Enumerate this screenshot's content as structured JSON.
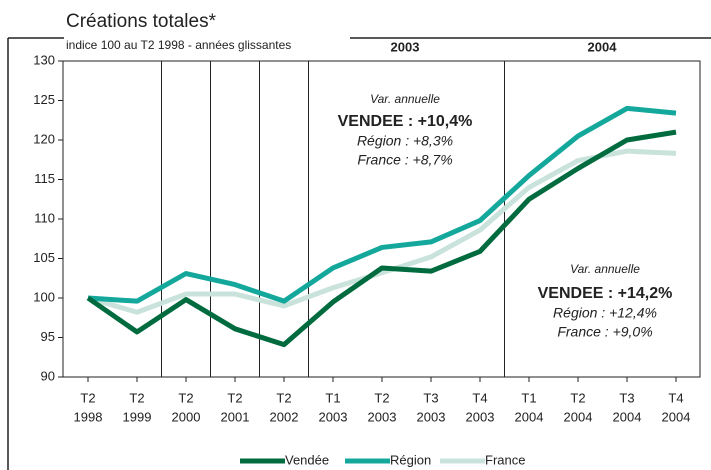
{
  "chart_data": {
    "type": "line",
    "title": "Créations totales*",
    "subtitle": "indice 100 au T2 1998 - années glissantes",
    "categories": [
      [
        "T2",
        "1998"
      ],
      [
        "T2",
        "1999"
      ],
      [
        "T2",
        "2000"
      ],
      [
        "T2",
        "2001"
      ],
      [
        "T2",
        "2002"
      ],
      [
        "T1",
        "2003"
      ],
      [
        "T2",
        "2003"
      ],
      [
        "T3",
        "2003"
      ],
      [
        "T4",
        "2003"
      ],
      [
        "T1",
        "2004"
      ],
      [
        "T2",
        "2004"
      ],
      [
        "T3",
        "2004"
      ],
      [
        "T4",
        "2004"
      ]
    ],
    "series": [
      {
        "name": "Vendée",
        "color": "#006b3f",
        "values": [
          100,
          95.7,
          99.8,
          96.1,
          94.1,
          99.5,
          103.8,
          103.4,
          105.9,
          112.5,
          116.4,
          120,
          121
        ]
      },
      {
        "name": "Région",
        "color": "#14a89c",
        "values": [
          100,
          99.6,
          103.1,
          101.7,
          99.6,
          103.8,
          106.4,
          107.1,
          109.8,
          115.5,
          120.5,
          124,
          123.4
        ]
      },
      {
        "name": "France",
        "color": "#c9e3dc",
        "values": [
          100,
          98.2,
          100.5,
          100.5,
          99,
          101.3,
          103.2,
          105.2,
          108.6,
          114,
          117.4,
          118.6,
          118.3
        ]
      }
    ],
    "ylim": [
      90,
      130
    ],
    "yticks": [
      90,
      95,
      100,
      105,
      110,
      115,
      120,
      125,
      130
    ],
    "period_labels": [
      "2003",
      "2004"
    ],
    "annotations": [
      [
        "Var. annuelle",
        "VENDEE : +10,4%",
        "Région : +8,3%",
        "France : +8,7%"
      ],
      [
        "Var. annuelle",
        "VENDEE : +14,2%",
        "Région : +12,4%",
        "France : +9,0%"
      ]
    ]
  }
}
